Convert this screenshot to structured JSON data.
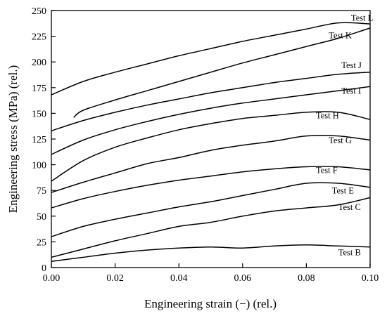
{
  "chart_data": {
    "type": "line",
    "xlabel": "Engineering strain (−) (rel.)",
    "ylabel": "Engineering stress (MPa) (rel.)",
    "xlim": [
      0,
      0.1
    ],
    "ylim": [
      0,
      250
    ],
    "xticks": [
      "0.00",
      "0.02",
      "0.04",
      "0.06",
      "0.08",
      "0.10"
    ],
    "yticks": [
      "0",
      "25",
      "50",
      "75",
      "100",
      "125",
      "150",
      "175",
      "200",
      "225",
      "250"
    ],
    "grid": false,
    "legend": "inline labels at right end of each curve",
    "series": [
      {
        "name": "Test L",
        "x": [
          0,
          0.01,
          0.02,
          0.03,
          0.04,
          0.05,
          0.06,
          0.07,
          0.08,
          0.09,
          0.1
        ],
        "y": [
          168,
          181,
          190,
          198,
          206,
          213,
          220,
          226,
          232,
          238,
          237
        ]
      },
      {
        "name": "Test K",
        "x": [
          0.007,
          0.01,
          0.02,
          0.03,
          0.04,
          0.05,
          0.06,
          0.07,
          0.08,
          0.09,
          0.1
        ],
        "y": [
          146,
          153,
          163,
          172,
          181,
          190,
          199,
          207,
          215,
          223,
          233
        ]
      },
      {
        "name": "Test J",
        "x": [
          0,
          0.01,
          0.02,
          0.03,
          0.04,
          0.05,
          0.06,
          0.07,
          0.08,
          0.09,
          0.1
        ],
        "y": [
          133,
          143,
          151,
          158,
          164,
          170,
          175,
          180,
          184,
          188,
          190
        ]
      },
      {
        "name": "Test I",
        "x": [
          0,
          0.01,
          0.02,
          0.03,
          0.04,
          0.05,
          0.06,
          0.07,
          0.08,
          0.09,
          0.1
        ],
        "y": [
          110,
          124,
          134,
          142,
          149,
          155,
          160,
          164,
          168,
          172,
          176
        ]
      },
      {
        "name": "Test H",
        "x": [
          0,
          0.01,
          0.02,
          0.03,
          0.04,
          0.05,
          0.06,
          0.07,
          0.08,
          0.09,
          0.1
        ],
        "y": [
          84,
          104,
          117,
          126,
          134,
          140,
          145,
          148,
          151,
          151,
          144
        ]
      },
      {
        "name": "Test G",
        "x": [
          0,
          0.01,
          0.02,
          0.03,
          0.04,
          0.05,
          0.06,
          0.07,
          0.08,
          0.09,
          0.1
        ],
        "y": [
          73,
          83,
          92,
          101,
          107,
          114,
          119,
          123,
          128,
          128,
          124
        ]
      },
      {
        "name": "Test F",
        "x": [
          0,
          0.01,
          0.02,
          0.03,
          0.04,
          0.05,
          0.06,
          0.07,
          0.08,
          0.09,
          0.1
        ],
        "y": [
          58,
          67,
          74,
          80,
          85,
          89,
          93,
          96,
          98,
          98,
          95
        ]
      },
      {
        "name": "Test E",
        "x": [
          0,
          0.01,
          0.02,
          0.03,
          0.04,
          0.05,
          0.06,
          0.07,
          0.08,
          0.09,
          0.1
        ],
        "y": [
          30,
          40,
          47,
          53,
          59,
          64,
          70,
          76,
          82,
          82,
          78
        ]
      },
      {
        "name": "Test C",
        "x": [
          0,
          0.01,
          0.02,
          0.03,
          0.04,
          0.05,
          0.06,
          0.07,
          0.08,
          0.09,
          0.1
        ],
        "y": [
          10,
          18,
          26,
          33,
          40,
          44,
          50,
          55,
          58,
          61,
          68
        ]
      },
      {
        "name": "Test B",
        "x": [
          0,
          0.01,
          0.02,
          0.03,
          0.04,
          0.05,
          0.06,
          0.07,
          0.08,
          0.09,
          0.1
        ],
        "y": [
          6,
          10,
          14,
          17,
          19,
          20,
          19,
          21,
          22,
          21,
          20
        ]
      }
    ]
  }
}
